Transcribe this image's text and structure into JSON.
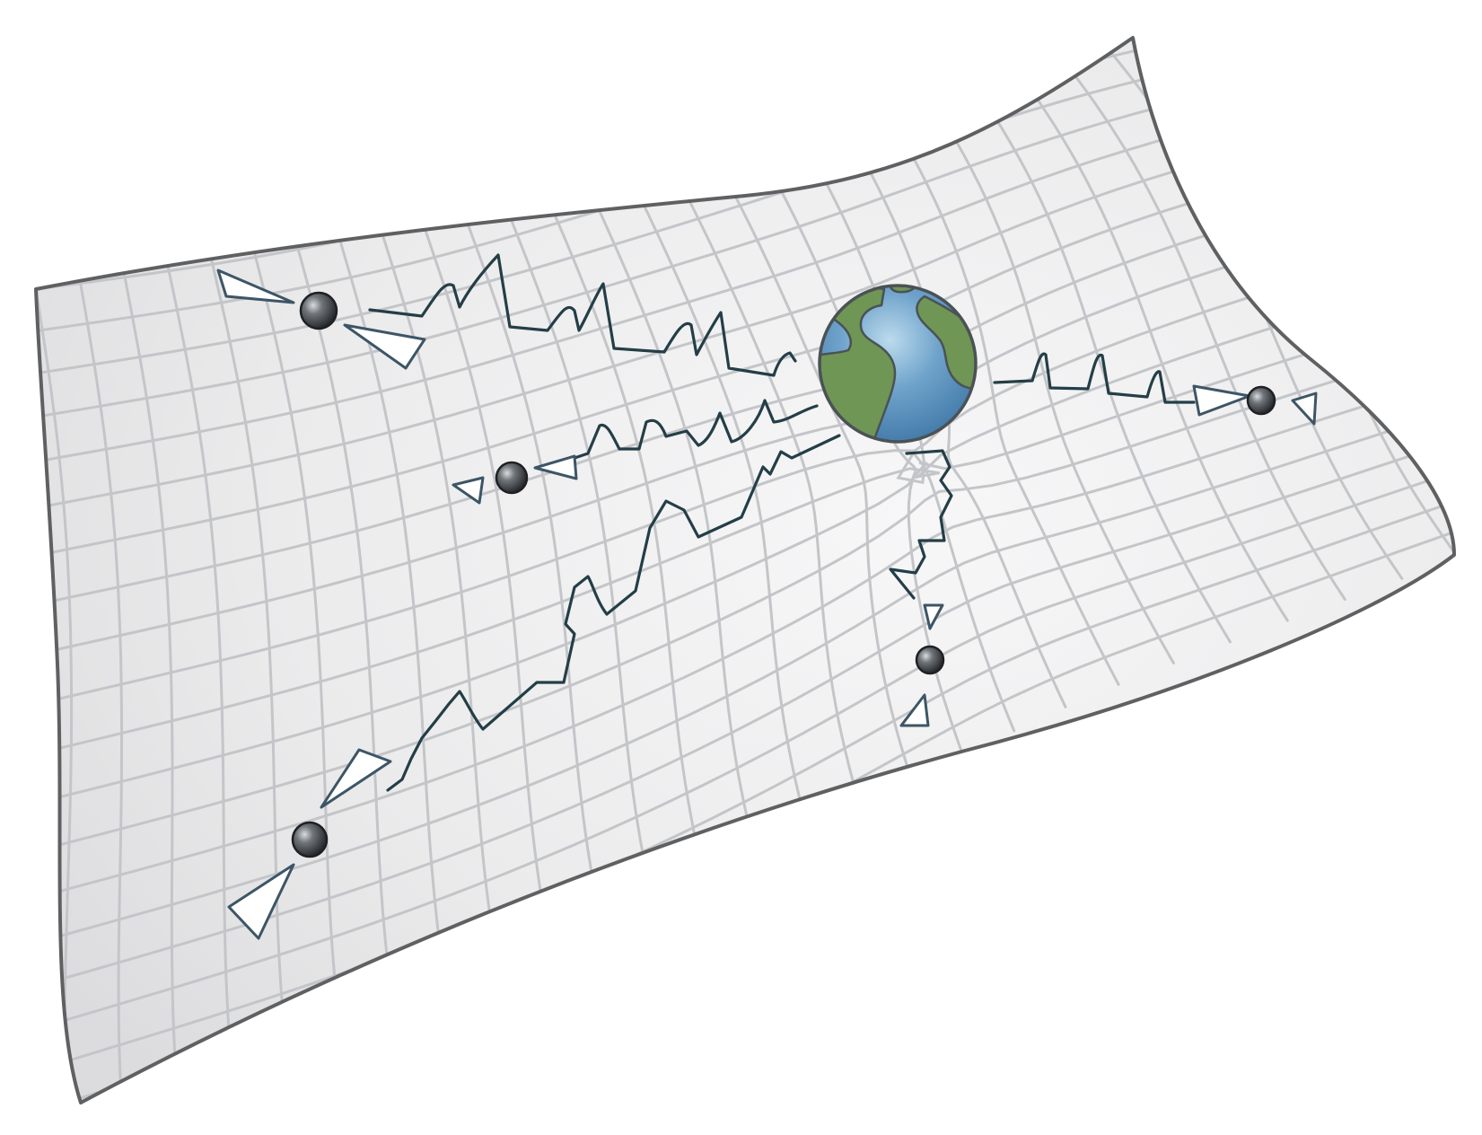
{
  "illustration": {
    "subject": "pulsar-timing-array",
    "colors": {
      "background": "#ffffff",
      "sheet_fill": "#eeeeef",
      "sheet_outline": "#5f6062",
      "grid": "#c4c5c8",
      "signal": "#243e47",
      "beam_outline": "#3d5566",
      "beam_fill": "#ffffff",
      "pulsar": "#2a2c2f",
      "ocean": "#5f96c1",
      "land": "#6f9654",
      "earth_outline": "#4a5256"
    },
    "earth": {
      "icon": "earth-globe-icon"
    },
    "pulsars": [
      {
        "id": "upper-left",
        "icon": "pulsar-icon"
      },
      {
        "id": "middle",
        "icon": "pulsar-icon"
      },
      {
        "id": "lower-left",
        "icon": "pulsar-icon"
      },
      {
        "id": "right",
        "icon": "pulsar-icon"
      },
      {
        "id": "bottom",
        "icon": "pulsar-icon"
      }
    ]
  }
}
